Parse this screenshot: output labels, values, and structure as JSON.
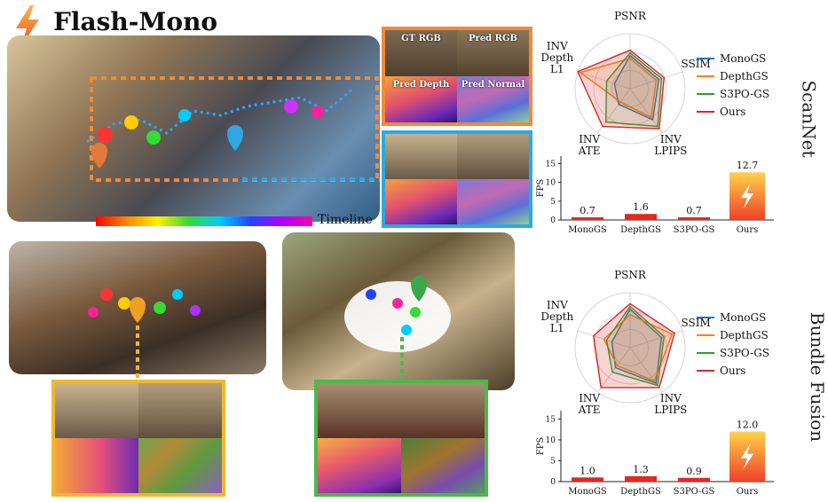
{
  "header": {
    "title": "Flash-Mono"
  },
  "overlays": {
    "timeline_label": "Timeline",
    "top_panel": {
      "gt_rgb": "GT RGB",
      "pred_rgb": "Pred RGB",
      "pred_depth": "Pred Depth",
      "pred_normal": "Pred Normal"
    }
  },
  "colors": {
    "monogs": "#1f77b4",
    "depthgs": "#ff7f0e",
    "s3pogs": "#2ca02c",
    "ours": "#d62728",
    "orange_frame": "#f08a3a",
    "blue_frame": "#2ea8e0",
    "yellow_frame": "#f0b830",
    "green_frame": "#4db84a"
  },
  "datasets": [
    {
      "label": "ScanNet"
    },
    {
      "label": "Bundle Fusion"
    }
  ],
  "chart_data": [
    {
      "type": "radar",
      "axes": [
        "PSNR",
        "SSIM",
        "INV LPIPS",
        "INV ATE",
        "INV Depth L1"
      ],
      "series": [
        {
          "name": "MonoGS",
          "values": [
            0.6,
            0.55,
            0.7,
            0.35,
            0.3
          ]
        },
        {
          "name": "DepthGS",
          "values": [
            0.55,
            0.5,
            0.65,
            0.3,
            0.95
          ]
        },
        {
          "name": "S3PO-GS",
          "values": [
            0.65,
            0.6,
            0.85,
            0.75,
            0.45
          ]
        },
        {
          "name": "Ours",
          "values": [
            0.7,
            0.65,
            0.9,
            0.85,
            1.0
          ]
        }
      ]
    },
    {
      "type": "bar",
      "categories": [
        "MonoGS",
        "DepthGS",
        "S3PO-GS",
        "Ours"
      ],
      "values": [
        0.7,
        1.6,
        0.7,
        12.7
      ],
      "ylabel": "FPS",
      "ylim": [
        0,
        17
      ],
      "yticks": [
        0,
        5,
        10,
        15
      ]
    },
    {
      "type": "radar",
      "axes": [
        "PSNR",
        "SSIM",
        "INV LPIPS",
        "INV ATE",
        "INV Depth L1"
      ],
      "series": [
        {
          "name": "MonoGS",
          "values": [
            0.7,
            0.6,
            0.8,
            0.45,
            0.35
          ]
        },
        {
          "name": "DepthGS",
          "values": [
            0.6,
            0.8,
            0.75,
            0.4,
            0.5
          ]
        },
        {
          "name": "S3PO-GS",
          "values": [
            0.75,
            0.65,
            0.85,
            0.55,
            0.45
          ]
        },
        {
          "name": "Ours",
          "values": [
            0.8,
            0.85,
            0.9,
            0.9,
            0.7
          ]
        }
      ]
    },
    {
      "type": "bar",
      "categories": [
        "MonoGS",
        "DepthGS",
        "S3PO-GS",
        "Ours"
      ],
      "values": [
        1.0,
        1.3,
        0.9,
        12.0
      ],
      "ylabel": "FPS",
      "ylim": [
        0,
        17
      ],
      "yticks": [
        0,
        5,
        10,
        15
      ]
    }
  ]
}
